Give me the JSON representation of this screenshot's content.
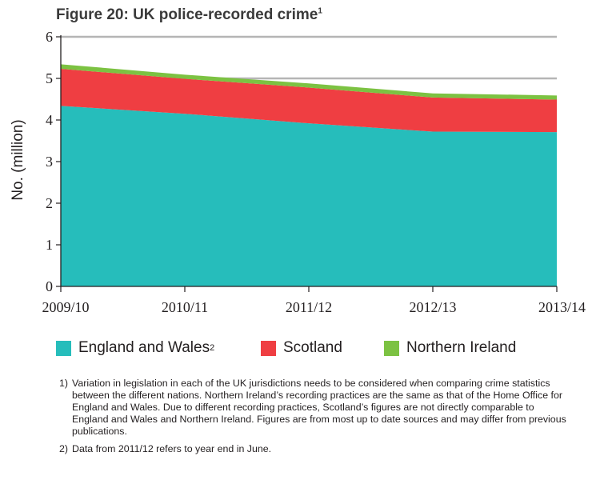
{
  "chart_data": {
    "type": "area",
    "stacked": true,
    "title": "Figure 20: UK police-recorded crime",
    "title_footnote": "1",
    "ylabel": "No. (million)",
    "xlabel": "",
    "ylim": [
      0,
      6
    ],
    "yticks": [
      "0",
      "1",
      "2",
      "3",
      "4",
      "5",
      "6"
    ],
    "categories": [
      "2009/10",
      "2010/11",
      "2011/12",
      "2012/13",
      "2013/14"
    ],
    "series": [
      {
        "name": "England and Wales",
        "name_footnote": "2",
        "color": "#26bdbb",
        "values": [
          4.34,
          4.15,
          3.92,
          3.72,
          3.71
        ]
      },
      {
        "name": "Scotland",
        "color": "#ef3e42",
        "values": [
          0.89,
          0.84,
          0.86,
          0.82,
          0.78
        ]
      },
      {
        "name": "Northern Ireland",
        "color": "#7cc242",
        "values": [
          0.11,
          0.1,
          0.1,
          0.1,
          0.1
        ]
      }
    ],
    "gridlines": [
      5,
      6
    ],
    "legend_position": "bottom"
  },
  "notes": [
    {
      "num": "1)",
      "text": "Variation in legislation in each of the UK jurisdictions needs to be considered when comparing crime statistics between the different nations. Northern Ireland’s recording practices are the same as that of the Home Office for England and Wales. Due to different recording practices, Scotland’s figures are not directly comparable to England and Wales and Northern Ireland. Figures are from most up to date sources and may differ from previous publications."
    },
    {
      "num": "2)",
      "text": "Data from 2011/12 refers to year end in June."
    }
  ]
}
